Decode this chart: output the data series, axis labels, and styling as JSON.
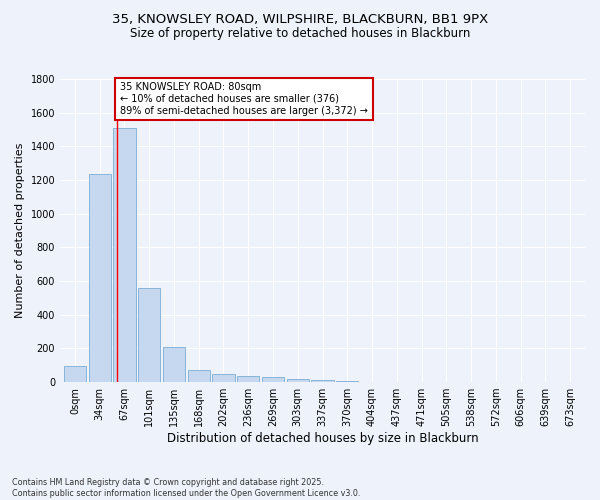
{
  "title_line1": "35, KNOWSLEY ROAD, WILPSHIRE, BLACKBURN, BB1 9PX",
  "title_line2": "Size of property relative to detached houses in Blackburn",
  "xlabel": "Distribution of detached houses by size in Blackburn",
  "ylabel": "Number of detached properties",
  "bar_color": "#c5d8f0",
  "bar_edge_color": "#7aadd4",
  "categories": [
    "0sqm",
    "34sqm",
    "67sqm",
    "101sqm",
    "135sqm",
    "168sqm",
    "202sqm",
    "236sqm",
    "269sqm",
    "303sqm",
    "337sqm",
    "370sqm",
    "404sqm",
    "437sqm",
    "471sqm",
    "505sqm",
    "538sqm",
    "572sqm",
    "606sqm",
    "639sqm",
    "673sqm"
  ],
  "values": [
    95,
    1235,
    1510,
    560,
    210,
    70,
    48,
    38,
    28,
    18,
    10,
    5,
    0,
    0,
    0,
    0,
    0,
    0,
    0,
    0,
    0
  ],
  "red_line_x": 1.72,
  "annotation_text": "35 KNOWSLEY ROAD: 80sqm\n← 10% of detached houses are smaller (376)\n89% of semi-detached houses are larger (3,372) →",
  "annotation_box_color": "#ffffff",
  "annotation_edge_color": "#cc0000",
  "ylim": [
    0,
    1800
  ],
  "yticks": [
    0,
    200,
    400,
    600,
    800,
    1000,
    1200,
    1400,
    1600,
    1800
  ],
  "footer_line1": "Contains HM Land Registry data © Crown copyright and database right 2025.",
  "footer_line2": "Contains public sector information licensed under the Open Government Licence v3.0.",
  "background_color": "#eef2fb",
  "grid_color": "#ffffff",
  "title_fontsize": 9.5,
  "subtitle_fontsize": 8.5,
  "ylabel_fontsize": 8,
  "xlabel_fontsize": 8.5,
  "tick_fontsize": 7,
  "footer_fontsize": 5.8,
  "annot_fontsize": 7
}
